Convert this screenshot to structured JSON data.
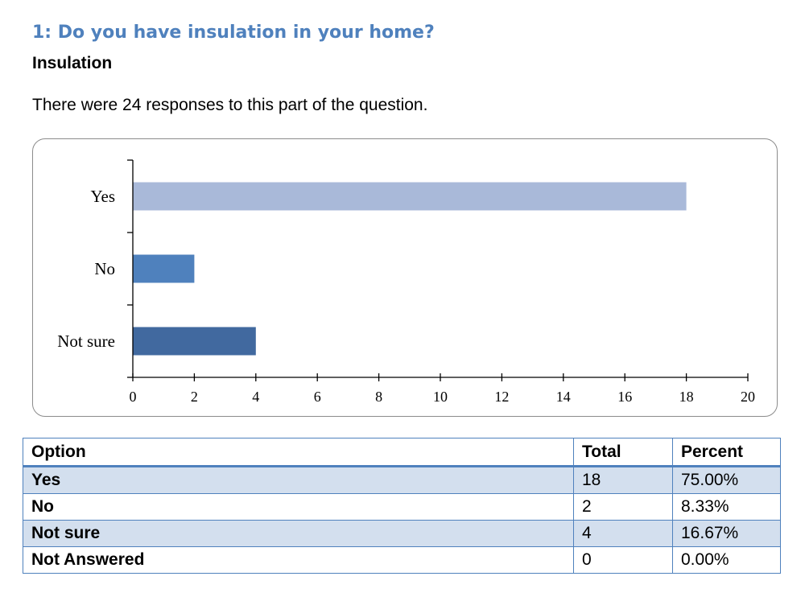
{
  "header": {
    "question": "1: Do you have insulation in your home?",
    "subheading": "Insulation",
    "intro": "There were 24 responses to this part of the question."
  },
  "chart_data": {
    "type": "bar",
    "orientation": "horizontal",
    "categories": [
      "Yes",
      "No",
      "Not sure"
    ],
    "values": [
      18,
      2,
      4
    ],
    "colors": [
      "#a9b9d9",
      "#4f81bd",
      "#41699f"
    ],
    "xlim": [
      0,
      20
    ],
    "xticks": [
      0,
      2,
      4,
      6,
      8,
      10,
      12,
      14,
      16,
      18,
      20
    ],
    "title": "",
    "xlabel": "",
    "ylabel": "",
    "grid": false
  },
  "table": {
    "headers": [
      "Option",
      "Total",
      "Percent"
    ],
    "rows": [
      [
        "Yes",
        "18",
        "75.00%"
      ],
      [
        "No",
        "2",
        "8.33%"
      ],
      [
        "Not sure",
        "4",
        "16.67%"
      ],
      [
        "Not Answered",
        "0",
        "0.00%"
      ]
    ]
  }
}
